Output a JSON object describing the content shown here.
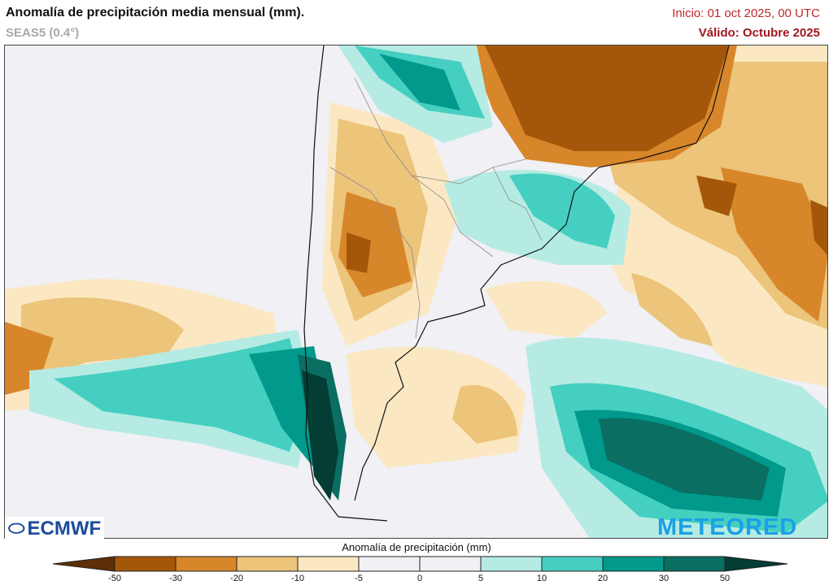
{
  "header": {
    "title": "Anomalía de precipitación media mensual (mm).",
    "subtitle": "SEAS5 (0.4°)",
    "init": "Inicio: 01 oct 2025, 00 UTC",
    "valid": "Válido: Octubre 2025"
  },
  "logos": {
    "left": "ECMWF",
    "right": "METEORED"
  },
  "colorbar": {
    "title": "Anomalía de precipitación (mm)",
    "ticks": [
      "-50",
      "-30",
      "-20",
      "-10",
      "-5",
      "0",
      "5",
      "10",
      "20",
      "30",
      "50"
    ],
    "colors": [
      "#5e2f06",
      "#a4570a",
      "#d8862a",
      "#ecc47a",
      "#fbe8c2",
      "#f0f0f5",
      "#f0f0f5",
      "#b5ebe3",
      "#45cfc0",
      "#00998c",
      "#0a6e62",
      "#033d33"
    ]
  },
  "map": {
    "background": "#f0f0f5",
    "land_border_color": "#111111",
    "admin_border_color": "#8a8a8a"
  }
}
